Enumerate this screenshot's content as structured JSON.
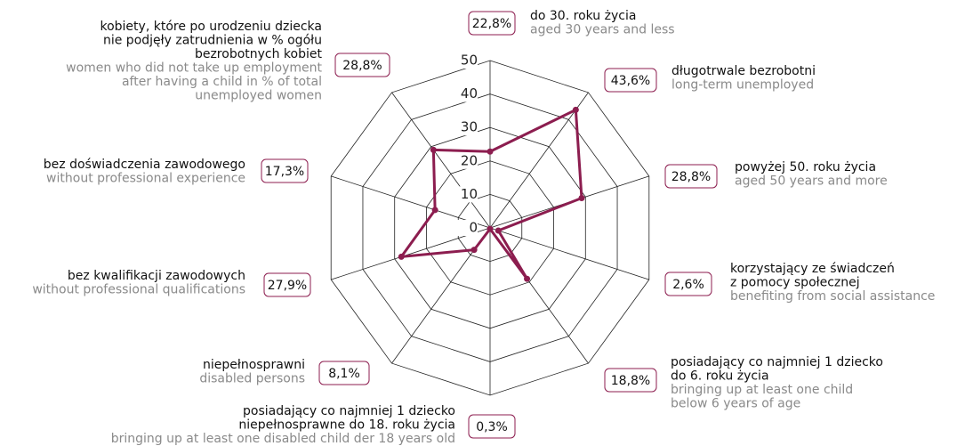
{
  "chart_data": {
    "type": "radar",
    "color": "#8c1d4f",
    "rlim": [
      0,
      50
    ],
    "rticks": [
      0,
      10,
      20,
      30,
      40,
      50
    ],
    "grid": true,
    "categories": [
      {
        "pl": [
          "do 30. roku życia"
        ],
        "en": [
          "aged 30 years and less"
        ]
      },
      {
        "pl": [
          "długotrwale bezrobotni"
        ],
        "en": [
          "long-term unemployed"
        ]
      },
      {
        "pl": [
          "powyżej 50. roku życia"
        ],
        "en": [
          "aged 50 years and more"
        ]
      },
      {
        "pl": [
          "korzystający ze świadczeń",
          "z pomocy społecznej"
        ],
        "en": [
          "benefiting from social assistance"
        ]
      },
      {
        "pl": [
          "posiadający co najmniej 1 dziecko",
          "do 6. roku życia"
        ],
        "en": [
          "bringing up at least one child",
          "below 6 years of age"
        ]
      },
      {
        "pl": [
          "posiadający co najmniej 1 dziecko",
          "niepełnosprawne do 18. roku życia"
        ],
        "en": [
          "bringing up at least one disabled child der 18 years old"
        ]
      },
      {
        "pl": [
          "niepełnosprawni"
        ],
        "en": [
          "disabled persons"
        ]
      },
      {
        "pl": [
          "bez kwalifikacji zawodowych"
        ],
        "en": [
          "without professional qualifications"
        ]
      },
      {
        "pl": [
          "bez doświadczenia zawodowego"
        ],
        "en": [
          "without professional experience"
        ]
      },
      {
        "pl": [
          "kobiety, które po urodzeniu dziecka",
          "nie podjęły zatrudnienia w % ogółu",
          "bezrobotnych kobiet"
        ],
        "en": [
          "women who did not take up employment",
          "after having a child in % of total",
          "unemployed women"
        ]
      }
    ],
    "values": [
      22.8,
      43.6,
      28.8,
      2.6,
      18.8,
      0.3,
      8.1,
      27.9,
      17.3,
      28.8
    ],
    "value_labels": [
      "22,8%",
      "43,6%",
      "28,8%",
      "2,6%",
      "18,8%",
      "0,3%",
      "8,1%",
      "27,9%",
      "17,3%",
      "28,8%"
    ]
  }
}
